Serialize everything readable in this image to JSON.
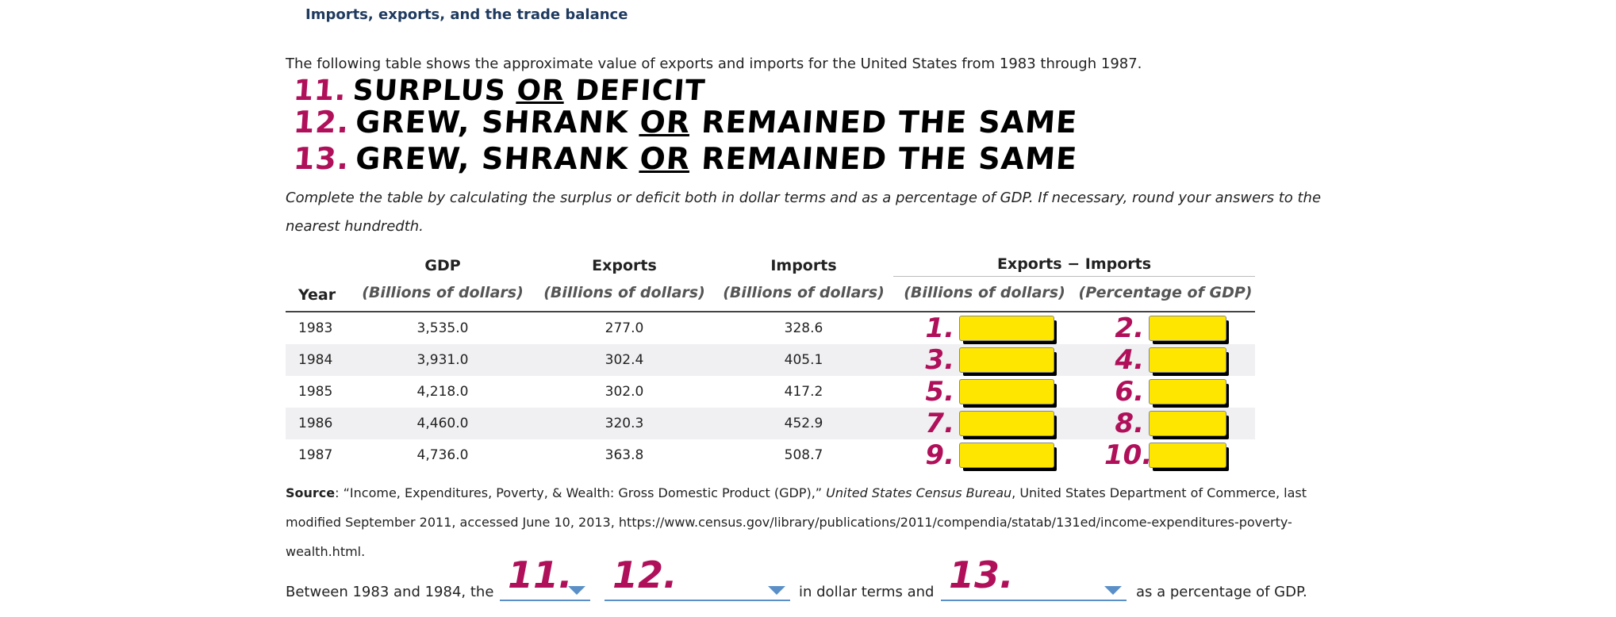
{
  "title": "Imports, exports, and the trade balance",
  "intro": "The following table shows the approximate value of exports and imports for the United States from 1983 through 1987.",
  "handwritten": [
    {
      "num": "11.",
      "pre": "SURPLUS ",
      "u": "OR",
      "post": " DEFICIT"
    },
    {
      "num": "12.",
      "pre": "GREW, SHRANK ",
      "u": "OR",
      "post": " REMAINED THE SAME"
    },
    {
      "num": "13.",
      "pre": "GREW, SHRANK ",
      "u": "OR",
      "post": " REMAINED THE SAME"
    }
  ],
  "instructions": "Complete the table by calculating the surplus or deficit both in dollar terms and as a percentage of GDP. If necessary, round your answers to the nearest hundredth.",
  "table": {
    "headers": {
      "year": "Year",
      "gdp": "GDP",
      "exports": "Exports",
      "imports": "Imports",
      "balance": "Exports − Imports",
      "unit_billions": "(Billions of dollars)",
      "unit_percent": "(Percentage of GDP)"
    },
    "rows": [
      {
        "year": "1983",
        "gdp": "3,535.0",
        "exports": "277.0",
        "imports": "328.6",
        "m1": "1.",
        "m2": "2."
      },
      {
        "year": "1984",
        "gdp": "3,931.0",
        "exports": "302.4",
        "imports": "405.1",
        "m1": "3.",
        "m2": "4."
      },
      {
        "year": "1985",
        "gdp": "4,218.0",
        "exports": "302.0",
        "imports": "417.2",
        "m1": "5.",
        "m2": "6."
      },
      {
        "year": "1986",
        "gdp": "4,460.0",
        "exports": "320.3",
        "imports": "452.9",
        "m1": "7.",
        "m2": "8."
      },
      {
        "year": "1987",
        "gdp": "4,736.0",
        "exports": "363.8",
        "imports": "508.7",
        "m1": "9.",
        "m2": "10."
      }
    ]
  },
  "source": {
    "label": "Source",
    "text1": ": “Income, Expenditures, Poverty, & Wealth: Gross Domestic Product (GDP),” ",
    "publisher": "United States Census Bureau",
    "text2": ", United States Department of Commerce, last modified September 2011, accessed June 10, 2013, https://www.census.gov/library/publications/2011/compendia/statab/131ed/income-expenditures-poverty-wealth.html."
  },
  "question": {
    "part1": "Between 1983 and 1984, the",
    "dd1": "11.",
    "dd2": "12.",
    "part2": "in dollar terms and",
    "dd3": "13.",
    "part3": "as a percentage of GDP."
  }
}
